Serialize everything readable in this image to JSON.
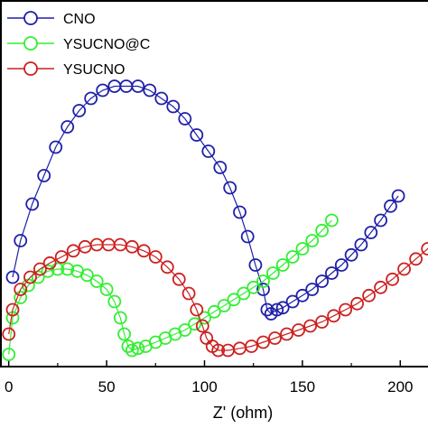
{
  "chart_data": {
    "type": "scatter",
    "xlabel": "Z' (ohm)",
    "ylabel": "",
    "xlim": [
      -4,
      222
    ],
    "ylim": [
      -2,
      88
    ],
    "x_ticks": [
      0,
      50,
      100,
      150,
      200
    ],
    "x_tick_labels": [
      "0",
      "50",
      "100",
      "150",
      "200"
    ],
    "legend_position": "top-left",
    "series": [
      {
        "name": "CNO",
        "color": "#1f1fa8",
        "marker": "open-circle",
        "points": [
          [
            2,
            20
          ],
          [
            6,
            29
          ],
          [
            12,
            38
          ],
          [
            18,
            45
          ],
          [
            24,
            52
          ],
          [
            30,
            57
          ],
          [
            36,
            61
          ],
          [
            42,
            64
          ],
          [
            48,
            66
          ],
          [
            54,
            67
          ],
          [
            60,
            67
          ],
          [
            66,
            67
          ],
          [
            72,
            66
          ],
          [
            78,
            64
          ],
          [
            84,
            62
          ],
          [
            90,
            59
          ],
          [
            96,
            55
          ],
          [
            102,
            51
          ],
          [
            108,
            47
          ],
          [
            113,
            42
          ],
          [
            118,
            36
          ],
          [
            122,
            30
          ],
          [
            126,
            23
          ],
          [
            130,
            17
          ],
          [
            132,
            12
          ],
          [
            134,
            11
          ],
          [
            137,
            12
          ],
          [
            140,
            12.5
          ],
          [
            145,
            14
          ],
          [
            150,
            15.5
          ],
          [
            155,
            17
          ],
          [
            160,
            19
          ],
          [
            165,
            21
          ],
          [
            170,
            23
          ],
          [
            175,
            25.5
          ],
          [
            180,
            28
          ],
          [
            185,
            31
          ],
          [
            190,
            34
          ],
          [
            195,
            37.5
          ],
          [
            199,
            40
          ]
        ]
      },
      {
        "name": "YSUCNO@C",
        "color": "#33ee33",
        "marker": "open-circle",
        "points": [
          [
            0,
            1
          ],
          [
            2,
            10
          ],
          [
            6,
            15
          ],
          [
            10,
            18
          ],
          [
            15,
            20
          ],
          [
            20,
            21.5
          ],
          [
            25,
            22
          ],
          [
            30,
            22
          ],
          [
            35,
            21.5
          ],
          [
            40,
            20.5
          ],
          [
            45,
            19
          ],
          [
            50,
            17
          ],
          [
            54,
            14
          ],
          [
            57,
            10
          ],
          [
            59,
            6
          ],
          [
            61,
            3
          ],
          [
            63,
            2
          ],
          [
            66,
            2.5
          ],
          [
            70,
            3
          ],
          [
            75,
            4
          ],
          [
            80,
            5
          ],
          [
            85,
            6
          ],
          [
            90,
            7
          ],
          [
            95,
            8.5
          ],
          [
            100,
            10
          ],
          [
            105,
            11.5
          ],
          [
            110,
            13
          ],
          [
            115,
            14.5
          ],
          [
            120,
            16
          ],
          [
            125,
            17.5
          ],
          [
            130,
            19
          ],
          [
            135,
            21
          ],
          [
            140,
            23
          ],
          [
            145,
            25
          ],
          [
            150,
            27
          ],
          [
            155,
            29
          ],
          [
            160,
            31.5
          ],
          [
            165,
            34
          ]
        ]
      },
      {
        "name": "YSUCNO",
        "color": "#cc2020",
        "marker": "open-circle",
        "points": [
          [
            0,
            6
          ],
          [
            2,
            12
          ],
          [
            6,
            17
          ],
          [
            11,
            20
          ],
          [
            16,
            22
          ],
          [
            21,
            23.5
          ],
          [
            27,
            25
          ],
          [
            33,
            26.5
          ],
          [
            39,
            27.5
          ],
          [
            45,
            28
          ],
          [
            51,
            28
          ],
          [
            57,
            28
          ],
          [
            63,
            27.5
          ],
          [
            69,
            26.5
          ],
          [
            75,
            25
          ],
          [
            81,
            22.5
          ],
          [
            87,
            19.5
          ],
          [
            92,
            16
          ],
          [
            96,
            12
          ],
          [
            99,
            8
          ],
          [
            101,
            5
          ],
          [
            104,
            3
          ],
          [
            107,
            2
          ],
          [
            112,
            2
          ],
          [
            118,
            2.5
          ],
          [
            124,
            3
          ],
          [
            130,
            4
          ],
          [
            136,
            5
          ],
          [
            142,
            6
          ],
          [
            148,
            7
          ],
          [
            154,
            8
          ],
          [
            160,
            9
          ],
          [
            166,
            10.5
          ],
          [
            172,
            12
          ],
          [
            178,
            13.5
          ],
          [
            184,
            15.5
          ],
          [
            190,
            17.5
          ],
          [
            196,
            19.5
          ],
          [
            202,
            22
          ],
          [
            208,
            24.5
          ],
          [
            214,
            27
          ],
          [
            219,
            29.5
          ]
        ]
      }
    ]
  }
}
